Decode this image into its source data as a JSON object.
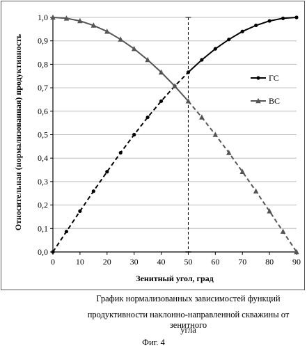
{
  "chart_data": {
    "type": "line",
    "title": "",
    "xlabel": "Зенитный угол, град",
    "ylabel": "Относительная (нормализованная) продуктивность",
    "xlim": [
      0,
      90
    ],
    "ylim": [
      0,
      1.0
    ],
    "x_ticks": [
      "0",
      "10",
      "20",
      "30",
      "40",
      "50",
      "60",
      "70",
      "80",
      "90"
    ],
    "y_ticks": [
      "0,0",
      "0,1",
      "0,2",
      "0,3",
      "0,4",
      "0,5",
      "0,6",
      "0,7",
      "0,8",
      "0,9",
      "1,0"
    ],
    "legend_position": "right",
    "vertical_marker_x": 50,
    "series": [
      {
        "name": "ГС",
        "marker": "circle",
        "color": "#000000",
        "x": [
          0,
          5,
          10,
          15,
          20,
          25,
          30,
          35,
          40,
          45,
          50,
          55,
          60,
          65,
          70,
          75,
          80,
          85,
          90
        ],
        "y": [
          0.0,
          0.087,
          0.174,
          0.259,
          0.342,
          0.423,
          0.5,
          0.574,
          0.643,
          0.707,
          0.766,
          0.819,
          0.866,
          0.906,
          0.94,
          0.966,
          0.985,
          0.996,
          1.0
        ]
      },
      {
        "name": "ВС",
        "marker": "triangle",
        "color": "#555555",
        "x": [
          0,
          5,
          10,
          15,
          20,
          25,
          30,
          35,
          40,
          45,
          50,
          55,
          60,
          65,
          70,
          75,
          80,
          85,
          90
        ],
        "y": [
          1.0,
          0.996,
          0.985,
          0.966,
          0.94,
          0.906,
          0.866,
          0.819,
          0.766,
          0.707,
          0.643,
          0.574,
          0.5,
          0.423,
          0.342,
          0.259,
          0.174,
          0.087,
          0.0
        ]
      }
    ]
  },
  "caption": {
    "line1": "График нормализованных зависимостей функций",
    "line2": "продуктивности наклонно-направленной скважины от зенитного",
    "line3": "угла",
    "figure": "Фиг. 4"
  }
}
